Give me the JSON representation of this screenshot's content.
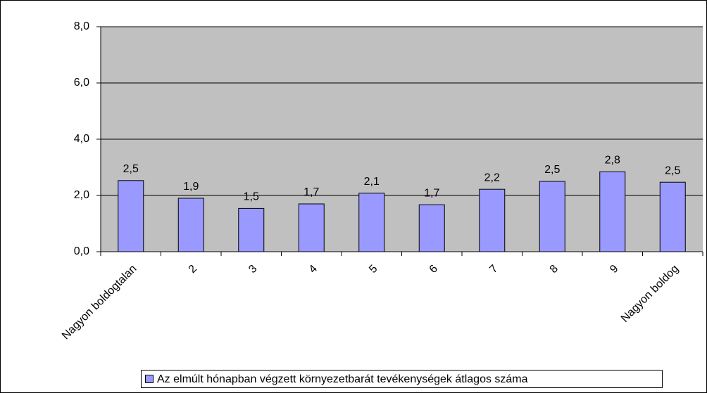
{
  "chart_data": {
    "type": "bar",
    "categories": [
      "Nagyon boldogtalan",
      "2",
      "3",
      "4",
      "5",
      "6",
      "7",
      "8",
      "9",
      "Nagyon boldog"
    ],
    "series": [
      {
        "name": "Az elmúlt hónapban végzett környezetbarát tevékenységek átlagos száma",
        "color": "#9999ff",
        "values": [
          2.53,
          1.9,
          1.54,
          1.7,
          2.08,
          1.67,
          2.22,
          2.5,
          2.84,
          2.47
        ],
        "value_labels": [
          "2,5",
          "1,9",
          "1,5",
          "1,7",
          "2,1",
          "1,7",
          "2,2",
          "2,5",
          "2,8",
          "2,5"
        ]
      }
    ],
    "ylim": [
      0,
      8
    ],
    "yticks": [
      {
        "value": 0,
        "label": "0,0"
      },
      {
        "value": 2,
        "label": "2,0"
      },
      {
        "value": 4,
        "label": "4,0"
      },
      {
        "value": 6,
        "label": "6,0"
      },
      {
        "value": 8,
        "label": "8,0"
      }
    ],
    "grid": true,
    "legend": "bottom"
  }
}
